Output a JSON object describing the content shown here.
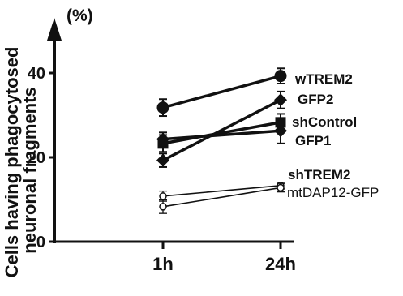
{
  "chart_data": {
    "type": "line",
    "title": "",
    "xlabel": "",
    "ylabel_line1": "Cells having phagocytosed",
    "ylabel_line2": "neuronal fragments",
    "y_unit": "(%)",
    "categories": [
      "1h",
      "24h"
    ],
    "ylim": [
      0,
      50
    ],
    "yticks": [
      0,
      20,
      40
    ],
    "grid": false,
    "legend": "none (series labeled at line ends)",
    "series": [
      {
        "name": "wTREM2",
        "values": [
          31.8,
          39.3
        ],
        "errors": [
          2.0,
          1.8
        ],
        "marker": "circle",
        "style": "thick"
      },
      {
        "name": "GFP2",
        "values": [
          19.3,
          33.6
        ],
        "errors": [
          1.6,
          2.0
        ],
        "marker": "diamond",
        "style": "thick"
      },
      {
        "name": "shControl",
        "values": [
          23.3,
          28.3
        ],
        "errors": [
          2.0,
          2.0
        ],
        "marker": "square",
        "style": "thick"
      },
      {
        "name": "GFP1",
        "values": [
          24.3,
          26.3
        ],
        "errors": [
          1.6,
          3.0
        ],
        "marker": "diamond",
        "style": "thick"
      },
      {
        "name": "shTREM2",
        "values": [
          10.8,
          13.3
        ],
        "errors": [
          1.2,
          0.8
        ],
        "marker": "open-circle",
        "style": "thin"
      },
      {
        "name": "mtDAP12-GFP",
        "values": [
          8.3,
          12.8
        ],
        "errors": [
          1.6,
          1.0
        ],
        "marker": "open-circle",
        "style": "thin"
      }
    ]
  }
}
